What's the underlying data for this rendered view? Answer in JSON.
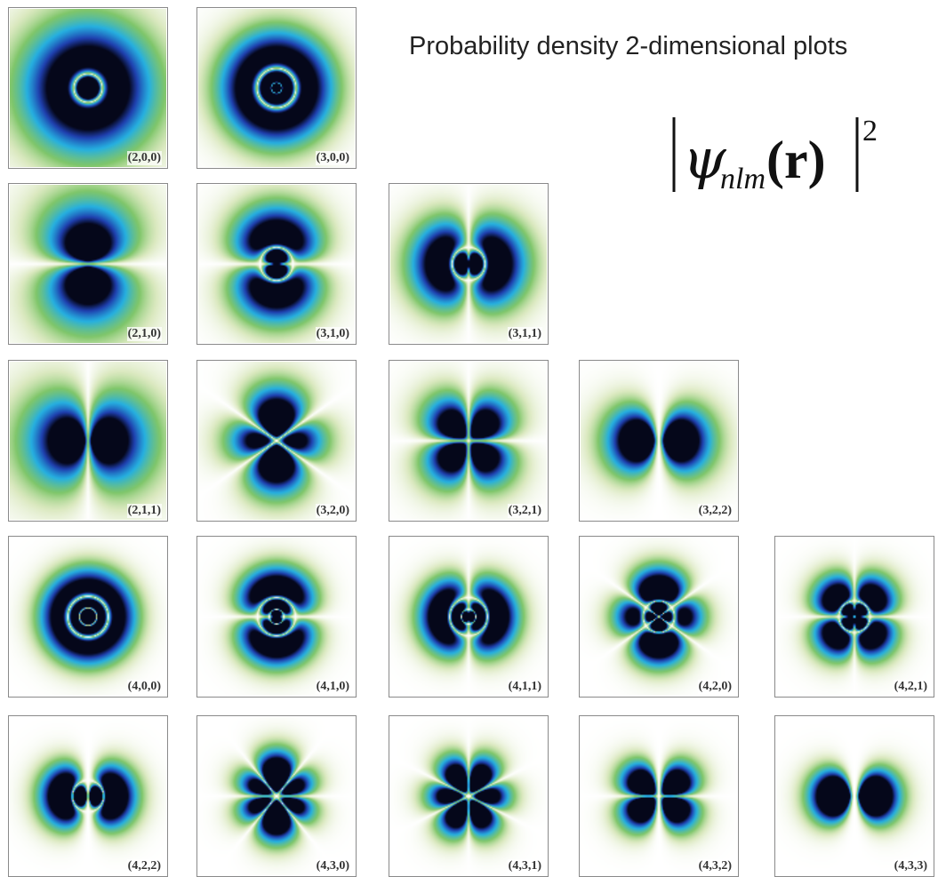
{
  "title": "Probability density 2-dimensional plots",
  "formula": {
    "psi": "ψ",
    "subscript": "nlm",
    "argument": "(r)",
    "exponent": "2"
  },
  "colors": {
    "core": "#05071a",
    "inner": "#1f3fae",
    "mid": "#26b0e0",
    "outer": "#7fc66a",
    "background": "#ffffff",
    "frame": "#8a8a8a"
  },
  "panels": [
    {
      "label": "(2,0,0)",
      "n": 2,
      "l": 0,
      "m": 0
    },
    {
      "label": "(3,0,0)",
      "n": 3,
      "l": 0,
      "m": 0
    },
    {
      "label": "(2,1,0)",
      "n": 2,
      "l": 1,
      "m": 0
    },
    {
      "label": "(3,1,0)",
      "n": 3,
      "l": 1,
      "m": 0
    },
    {
      "label": "(3,1,1)",
      "n": 3,
      "l": 1,
      "m": 1
    },
    {
      "label": "(2,1,1)",
      "n": 2,
      "l": 1,
      "m": 1
    },
    {
      "label": "(3,2,0)",
      "n": 3,
      "l": 2,
      "m": 0
    },
    {
      "label": "(3,2,1)",
      "n": 3,
      "l": 2,
      "m": 1
    },
    {
      "label": "(3,2,2)",
      "n": 3,
      "l": 2,
      "m": 2
    },
    {
      "label": "(4,0,0)",
      "n": 4,
      "l": 0,
      "m": 0
    },
    {
      "label": "(4,1,0)",
      "n": 4,
      "l": 1,
      "m": 0
    },
    {
      "label": "(4,1,1)",
      "n": 4,
      "l": 1,
      "m": 1
    },
    {
      "label": "(4,2,0)",
      "n": 4,
      "l": 2,
      "m": 0
    },
    {
      "label": "(4,2,1)",
      "n": 4,
      "l": 2,
      "m": 1
    },
    {
      "label": "(4,2,2)",
      "n": 4,
      "l": 2,
      "m": 2
    },
    {
      "label": "(4,3,0)",
      "n": 4,
      "l": 3,
      "m": 0
    },
    {
      "label": "(4,3,1)",
      "n": 4,
      "l": 3,
      "m": 1
    },
    {
      "label": "(4,3,2)",
      "n": 4,
      "l": 3,
      "m": 2
    },
    {
      "label": "(4,3,3)",
      "n": 4,
      "l": 3,
      "m": 3
    }
  ]
}
